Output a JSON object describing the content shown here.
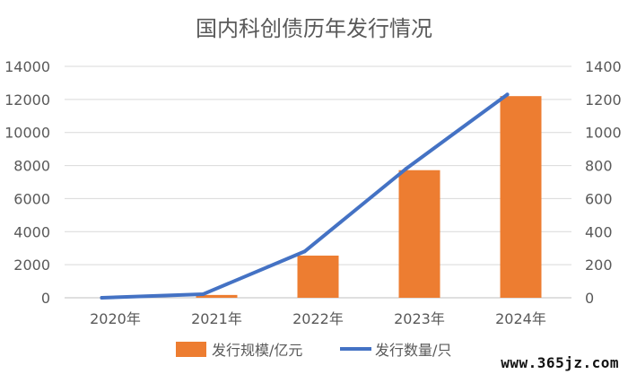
{
  "chart_data": {
    "type": "bar",
    "title": "国内科创债历年发行情况",
    "categories": [
      "2020年",
      "2021年",
      "2022年",
      "2023年",
      "2024年"
    ],
    "series": [
      {
        "name": "发行规模/亿元",
        "type": "bar",
        "axis": "left",
        "values": [
          0,
          170,
          2550,
          7720,
          12200
        ],
        "color": "#ED7D31"
      },
      {
        "name": "发行数量/只",
        "type": "line",
        "axis": "right",
        "values": [
          0,
          22,
          280,
          780,
          1230
        ],
        "color": "#4472C4"
      }
    ],
    "left_axis": {
      "ylim": [
        0,
        14000
      ],
      "ticks": [
        0,
        2000,
        4000,
        6000,
        8000,
        10000,
        12000,
        14000
      ]
    },
    "right_axis": {
      "ylim": [
        0,
        1400
      ],
      "ticks": [
        0,
        200,
        400,
        600,
        800,
        1000,
        1200,
        1400
      ]
    },
    "grid": true,
    "legend_position": "bottom"
  },
  "watermark": "www.365jz.com"
}
